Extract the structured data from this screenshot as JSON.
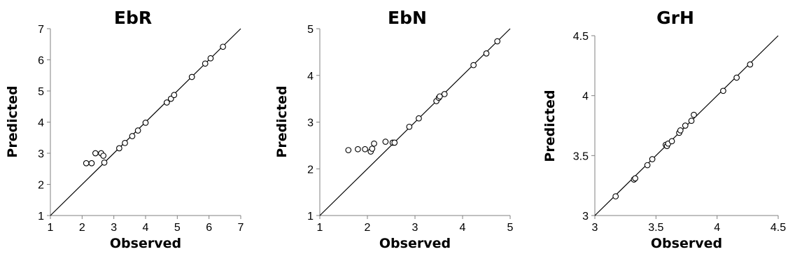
{
  "chart_data": [
    {
      "type": "scatter",
      "title": "EbR",
      "xlabel": "Observed",
      "ylabel": "Predicted",
      "xlim": [
        1,
        7
      ],
      "ylim": [
        1,
        7
      ],
      "xticks": [
        "1",
        "2",
        "3",
        "4",
        "5",
        "6",
        "7"
      ],
      "yticks": [
        "1",
        "2",
        "3",
        "4",
        "5",
        "6",
        "7"
      ],
      "reference_line": "y = x",
      "grid": false,
      "series": [
        {
          "x": [
            2.13,
            2.3,
            2.42,
            2.6,
            2.67,
            2.7,
            3.17,
            3.35,
            3.58,
            3.76,
            4.0,
            4.67,
            4.8,
            4.9,
            5.46,
            5.88,
            6.05,
            6.44
          ],
          "y": [
            2.68,
            2.68,
            3.0,
            3.0,
            2.92,
            2.7,
            3.16,
            3.33,
            3.55,
            3.73,
            3.98,
            4.63,
            4.75,
            4.87,
            5.45,
            5.88,
            6.05,
            6.42
          ]
        }
      ]
    },
    {
      "type": "scatter",
      "title": "EbN",
      "xlabel": "Observed",
      "ylabel": "Predicted",
      "xlim": [
        1,
        5
      ],
      "ylim": [
        1,
        5
      ],
      "xticks": [
        "1",
        "2",
        "3",
        "4",
        "5"
      ],
      "yticks": [
        "1",
        "2",
        "3",
        "4",
        "5"
      ],
      "reference_line": "y = x",
      "grid": false,
      "series": [
        {
          "x": [
            1.6,
            1.8,
            1.95,
            2.07,
            2.1,
            2.14,
            2.38,
            2.53,
            2.57,
            2.88,
            3.08,
            3.45,
            3.5,
            3.52,
            3.62,
            4.23,
            4.5,
            4.73
          ],
          "y": [
            2.4,
            2.42,
            2.42,
            2.37,
            2.43,
            2.54,
            2.58,
            2.56,
            2.56,
            2.9,
            3.08,
            3.45,
            3.52,
            3.55,
            3.6,
            4.22,
            4.47,
            4.73
          ]
        }
      ]
    },
    {
      "type": "scatter",
      "title": "GrH",
      "xlabel": "Observed",
      "ylabel": "Predicted",
      "xlim": [
        3,
        4.5
      ],
      "ylim": [
        3,
        4.5
      ],
      "xticks": [
        "3",
        "3.5",
        "4",
        "4.5"
      ],
      "yticks": [
        "3",
        "3.5",
        "4",
        "4.5"
      ],
      "reference_line": "y = x",
      "grid": false,
      "series": [
        {
          "x": [
            3.17,
            3.32,
            3.33,
            3.43,
            3.47,
            3.58,
            3.59,
            3.6,
            3.63,
            3.69,
            3.7,
            3.74,
            3.79,
            3.81,
            4.05,
            4.16,
            4.27
          ],
          "y": [
            3.16,
            3.3,
            3.31,
            3.42,
            3.47,
            3.59,
            3.58,
            3.6,
            3.62,
            3.69,
            3.71,
            3.75,
            3.79,
            3.84,
            4.04,
            4.15,
            4.26
          ]
        }
      ]
    }
  ]
}
